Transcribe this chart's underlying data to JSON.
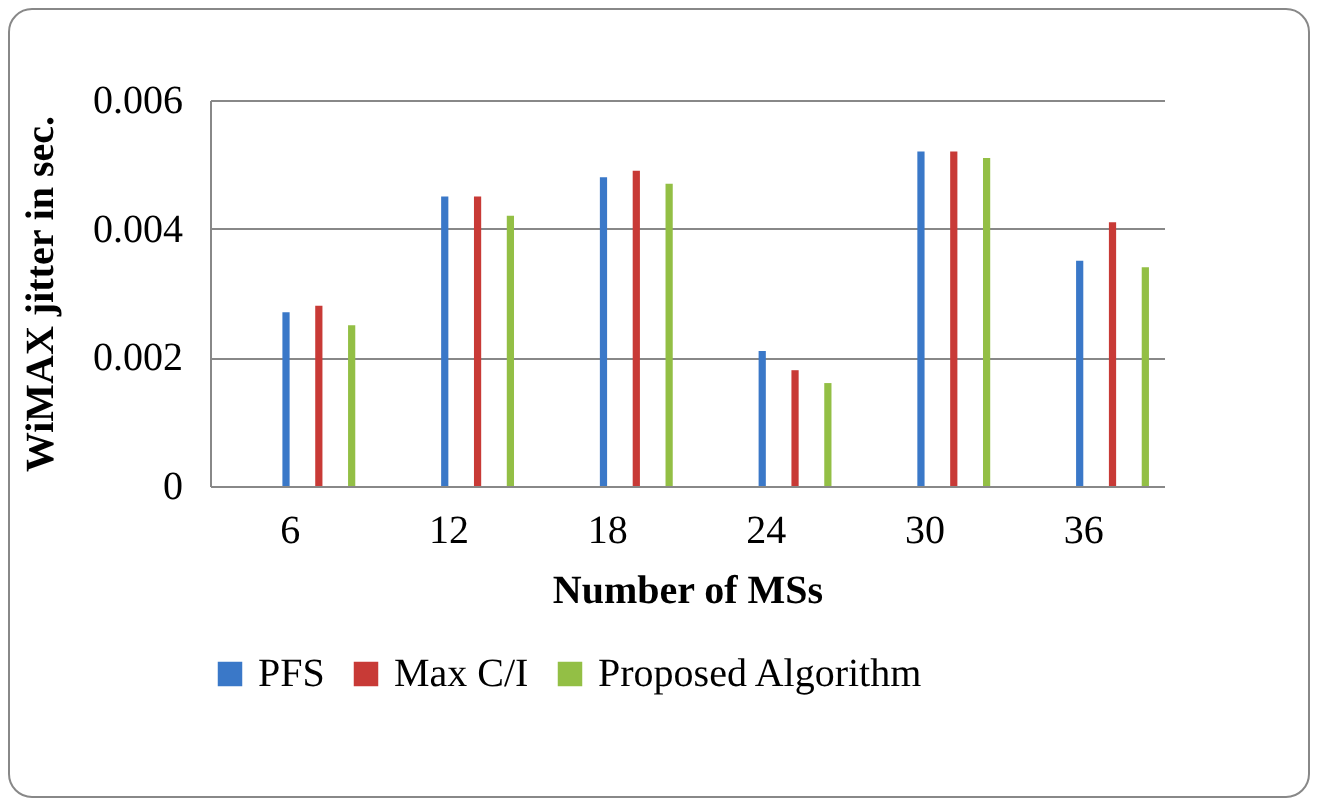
{
  "chart_data": {
    "type": "bar",
    "xlabel": "Number of MSs",
    "ylabel": "WiMAX jitter in sec.",
    "categories": [
      "6",
      "12",
      "18",
      "24",
      "30",
      "36"
    ],
    "series": [
      {
        "name": "PFS",
        "color": "#3a78c8",
        "values": [
          0.0027,
          0.0045,
          0.0048,
          0.0021,
          0.0052,
          0.0035
        ]
      },
      {
        "name": "Max C/I",
        "color": "#c83a36",
        "values": [
          0.0028,
          0.0045,
          0.0049,
          0.0018,
          0.0052,
          0.0041
        ]
      },
      {
        "name": "Proposed Algorithm",
        "color": "#93bf45",
        "values": [
          0.0025,
          0.0042,
          0.0047,
          0.0016,
          0.0051,
          0.0034
        ]
      }
    ],
    "ylim": [
      0,
      0.006
    ],
    "yticks": [
      0,
      0.002,
      0.004,
      0.006
    ],
    "grid": "y",
    "legend": "bottom"
  }
}
